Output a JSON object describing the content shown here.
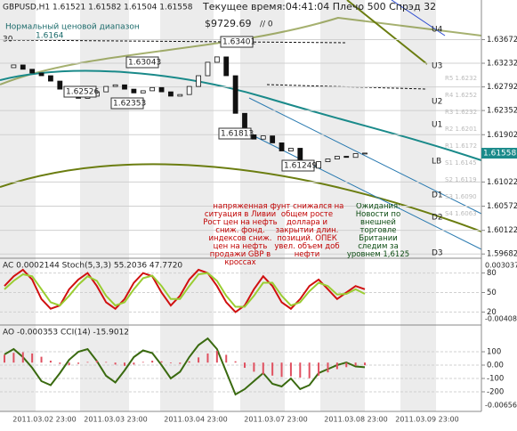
{
  "header": {
    "symbol_line": "GBPUSD,H1  1.61521 1.61582 1.61504 1.61558",
    "status": "Текущее время:04:41:04 Плечо 500 Спрэд 32",
    "balance": "$9729.69",
    "counter": "// 0",
    "range_label": "Нормальный ценовой диапазон",
    "range_value": "1.6164",
    "corner_value": "30"
  },
  "chart_data": [
    {
      "type": "candle-line",
      "series": [
        {
          "name": "GBPUSD",
          "color": "#1a1a1a",
          "values": [
            1.6315,
            1.632,
            1.6312,
            1.6305,
            1.63,
            1.629,
            1.6275,
            1.6265,
            1.6258,
            1.6262,
            1.627,
            1.628,
            1.6283,
            1.6275,
            1.6268,
            1.6272,
            1.6278,
            1.627,
            1.6262,
            1.6265,
            1.628,
            1.63,
            1.6325,
            1.6335,
            1.63,
            1.623,
            1.619,
            1.6182,
            1.6188,
            1.6175,
            1.616,
            1.6165,
            1.614,
            1.6128,
            1.614,
            1.6145,
            1.615,
            1.6148,
            1.6155,
            1.6156
          ]
        }
      ],
      "ylim": [
        1.59603,
        1.64177
      ],
      "yticks": [
        1.63672,
        1.63232,
        1.62792,
        1.62352,
        1.61902,
        1.61022,
        1.60572,
        1.60122,
        1.59682
      ],
      "current": 1.61558,
      "price_labels": [
        "1.63401",
        "1.63043",
        "1.62526",
        "1.62353",
        "1.61813",
        "1.61249"
      ],
      "levels": [
        "U4",
        "U3",
        "U2",
        "U1",
        "LB",
        "D1",
        "D2",
        "D3"
      ],
      "level_notes": [
        "R5 1.6232",
        "R4 1.6252",
        "R3 1.6232",
        "R2 1.6201",
        "R1 1.6172",
        "S1 1.6145",
        "S2 1.6119",
        "S3 1.6090",
        "S4 1.6063"
      ],
      "notes": [
        "напряженная ситуация в Ливии Рост цен на нефть сниж. фонд. индексов сниж. цен на нефть продажи GBP в кроссах",
        "фунт снижался на общем росте доллара и закрытии длин. позиций. ОПЕК увел. объем доб нефти",
        "Ожидания: Новости по внешней торговле Британии следим за уровнем 1,6125"
      ],
      "xtick_labels": [
        "2011.03.02 23:00",
        "2011.03.03 23:00",
        "2011.03.04 23:00",
        "2011.03.07 23:00",
        "2011.03.08 23:00",
        "2011.03.09 23:00"
      ]
    },
    {
      "type": "line",
      "title": "AC 0.0002144  Stoch(5,3,3) 55.2036 47.7720",
      "ylim": [
        0,
        100
      ],
      "yticks": [
        80,
        50,
        20
      ],
      "y2labels": [
        "0.003037",
        "-0.00408"
      ],
      "series": [
        {
          "name": "Stoch main",
          "color": "#d01010",
          "values": [
            60,
            75,
            85,
            70,
            40,
            25,
            30,
            55,
            70,
            80,
            60,
            35,
            25,
            40,
            65,
            80,
            75,
            50,
            30,
            45,
            70,
            85,
            80,
            60,
            35,
            20,
            30,
            55,
            75,
            60,
            35,
            25,
            40,
            60,
            70,
            55,
            40,
            50,
            60,
            55
          ]
        },
        {
          "name": "Stoch signal",
          "color": "#9acd32",
          "values": [
            55,
            68,
            78,
            75,
            55,
            35,
            30,
            45,
            62,
            75,
            68,
            45,
            30,
            35,
            55,
            72,
            76,
            60,
            40,
            40,
            60,
            78,
            80,
            68,
            45,
            28,
            28,
            45,
            65,
            65,
            45,
            30,
            35,
            52,
            65,
            60,
            47,
            48,
            55,
            48
          ]
        }
      ]
    },
    {
      "type": "bar-line",
      "title": "AO -0.000353  CCI(14) -15.9012",
      "ylim": [
        -347,
        287
      ],
      "yticks": [
        100,
        {
          "value": 0,
          "label": "0.00"
        },
        -100,
        -200
      ],
      "y2label": "-0.006563",
      "series": [
        {
          "name": "CCI",
          "color": "#3a6a10",
          "values": [
            80,
            120,
            60,
            -20,
            -120,
            -150,
            -60,
            40,
            100,
            120,
            30,
            -80,
            -130,
            -40,
            60,
            110,
            90,
            0,
            -100,
            -50,
            60,
            150,
            200,
            120,
            -50,
            -220,
            -180,
            -120,
            -60,
            -140,
            -160,
            -100,
            -180,
            -150,
            -60,
            -30,
            0,
            20,
            -10,
            -16
          ]
        },
        {
          "name": "AO",
          "color": "#e05060",
          "axis": "y2",
          "values": [
            0.0012,
            0.0015,
            0.0016,
            0.0014,
            0.0009,
            0.0003,
            -0.0002,
            -0.0004,
            -0.0002,
            0.0001,
            0.0003,
            0.0001,
            -0.0003,
            -0.0005,
            -0.0003,
            0.0001,
            0.0003,
            0.0002,
            -0.0001,
            -0.0002,
            0.0002,
            0.0008,
            0.0014,
            0.0018,
            0.0012,
            0.0002,
            -0.0008,
            -0.0014,
            -0.0018,
            -0.002,
            -0.0022,
            -0.0021,
            -0.0023,
            -0.0024,
            -0.002,
            -0.0015,
            -0.001,
            -0.0007,
            -0.0005,
            -0.0004
          ]
        }
      ],
      "y2lim": [
        -0.0075,
        0.0055
      ]
    }
  ]
}
